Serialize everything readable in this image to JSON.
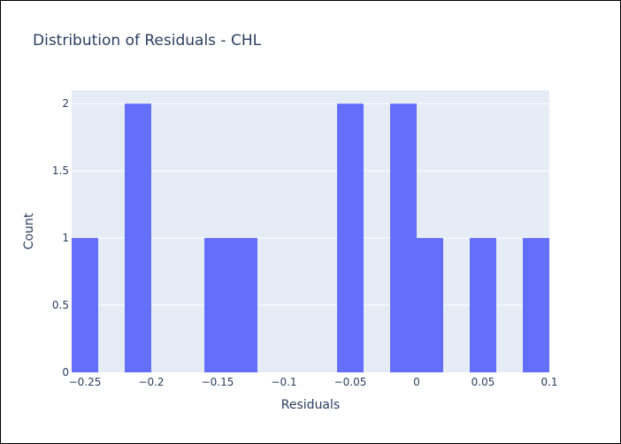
{
  "chart_data": {
    "type": "bar",
    "title": "Distribution of Residuals - CHL",
    "xlabel": "Residuals",
    "ylabel": "Count",
    "xlim": [
      -0.26,
      0.1
    ],
    "ylim": [
      0,
      2.1
    ],
    "bin_width": 0.02,
    "bins": [
      {
        "start": -0.26,
        "end": -0.24,
        "count": 1
      },
      {
        "start": -0.22,
        "end": -0.2,
        "count": 2
      },
      {
        "start": -0.16,
        "end": -0.14,
        "count": 1
      },
      {
        "start": -0.14,
        "end": -0.12,
        "count": 1
      },
      {
        "start": -0.06,
        "end": -0.04,
        "count": 2
      },
      {
        "start": -0.02,
        "end": 0.0,
        "count": 2
      },
      {
        "start": 0.0,
        "end": 0.02,
        "count": 1
      },
      {
        "start": 0.04,
        "end": 0.06,
        "count": 1
      },
      {
        "start": 0.08,
        "end": 0.1,
        "count": 1
      }
    ],
    "x_ticks": [
      -0.25,
      -0.2,
      -0.15,
      -0.1,
      -0.05,
      0,
      0.05,
      0.1
    ],
    "x_tick_labels": [
      "−0.25",
      "−0.2",
      "−0.15",
      "−0.1",
      "−0.05",
      "0",
      "0.05",
      "0.1"
    ],
    "y_ticks": [
      0,
      0.5,
      1,
      1.5,
      2
    ],
    "y_tick_labels": [
      "0",
      "0.5",
      "1",
      "1.5",
      "2"
    ],
    "grid": true,
    "colors": {
      "bar": "#636efa",
      "plot_bg": "#e5ecf6",
      "grid": "#ffffff",
      "text": "#2a3f5f"
    }
  }
}
